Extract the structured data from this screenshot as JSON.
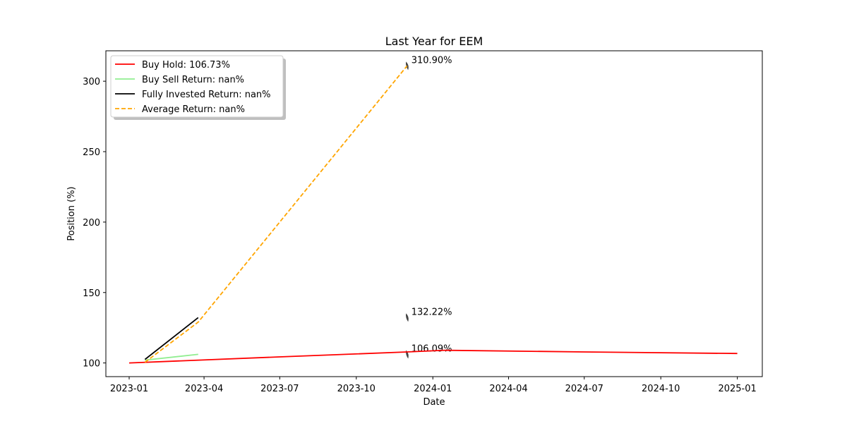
{
  "chart_data": {
    "type": "line",
    "title": "Last Year for EEM",
    "xlabel": "Date",
    "ylabel": "Position (%)",
    "xlim": [
      "2022-12-04",
      "2025-01-31"
    ],
    "ylim": [
      90.3,
      321.6
    ],
    "x_ticks": [
      "2023-01",
      "2023-04",
      "2023-07",
      "2023-10",
      "2024-01",
      "2024-04",
      "2024-07",
      "2024-10",
      "2025-01"
    ],
    "y_ticks": [
      100,
      150,
      200,
      250,
      300
    ],
    "legend_position": "upper-left",
    "grid": false,
    "series": [
      {
        "name": "Buy Hold: 106.73%",
        "color": "#ff0000",
        "style": "solid",
        "points": [
          {
            "x": "2023-01-01",
            "y": 100.0
          },
          {
            "x": "2023-07-01",
            "y": 104.3
          },
          {
            "x": "2023-12-01",
            "y": 107.8
          },
          {
            "x": "2024-01-15",
            "y": 109.0
          },
          {
            "x": "2024-07-01",
            "y": 107.8
          },
          {
            "x": "2025-01-01",
            "y": 106.7
          }
        ]
      },
      {
        "name": "Buy Sell Return: nan%",
        "color": "#90ee90",
        "style": "solid",
        "points": [
          {
            "x": "2023-01-20",
            "y": 102.0
          },
          {
            "x": "2023-03-25",
            "y": 106.1
          }
        ]
      },
      {
        "name": "Fully Invested Return: nan%",
        "color": "#000000",
        "style": "solid",
        "points": [
          {
            "x": "2023-01-20",
            "y": 102.5
          },
          {
            "x": "2023-03-25",
            "y": 132.2
          }
        ]
      },
      {
        "name": "Average Return: nan%",
        "color": "#ffa500",
        "style": "dashed",
        "points": [
          {
            "x": "2023-01-20",
            "y": 100.5
          },
          {
            "x": "2023-03-25",
            "y": 129.0
          },
          {
            "x": "2023-12-01",
            "y": 310.9
          }
        ]
      }
    ],
    "annotations": [
      {
        "text": "310.90%",
        "x": "2023-12-01",
        "y": 310.9
      },
      {
        "text": "132.22%",
        "x": "2023-12-01",
        "y": 132.2
      },
      {
        "text": "106.09%",
        "x": "2023-12-01",
        "y": 106.1
      }
    ]
  }
}
